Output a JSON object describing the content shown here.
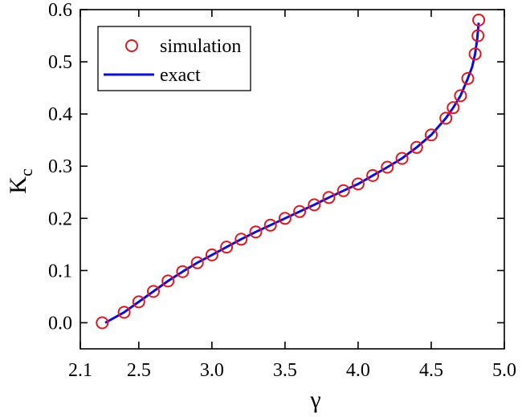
{
  "chart_data": {
    "type": "scatter",
    "title": "",
    "xlabel": "γ",
    "ylabel_main": "K",
    "ylabel_sub": "c",
    "xlim": [
      2.1,
      5.0
    ],
    "ylim": [
      -0.05,
      0.6
    ],
    "xticks": [
      2.1,
      2.5,
      3.0,
      3.5,
      4.0,
      4.5,
      5.0
    ],
    "xtick_labels": [
      "2.1",
      "2.5",
      "3.0",
      "3.5",
      "4.0",
      "4.5",
      "5.0"
    ],
    "yticks": [
      0.0,
      0.1,
      0.2,
      0.3,
      0.4,
      0.5,
      0.6
    ],
    "ytick_labels": [
      "0.0",
      "0.1",
      "0.2",
      "0.3",
      "0.4",
      "0.5",
      "0.6"
    ],
    "grid": false,
    "legend_position": "top-left",
    "series": [
      {
        "name": "simulation",
        "kind": "markers",
        "color": "#e8141c",
        "x": [
          2.25,
          2.4,
          2.5,
          2.6,
          2.7,
          2.8,
          2.9,
          3.0,
          3.1,
          3.2,
          3.3,
          3.4,
          3.5,
          3.6,
          3.7,
          3.8,
          3.9,
          4.0,
          4.1,
          4.2,
          4.3,
          4.4,
          4.5,
          4.6,
          4.65,
          4.7,
          4.75,
          4.8,
          4.82,
          4.825
        ],
        "y": [
          0.0,
          0.02,
          0.04,
          0.06,
          0.08,
          0.098,
          0.115,
          0.13,
          0.145,
          0.16,
          0.174,
          0.187,
          0.2,
          0.213,
          0.226,
          0.24,
          0.253,
          0.266,
          0.282,
          0.298,
          0.315,
          0.336,
          0.36,
          0.392,
          0.412,
          0.435,
          0.468,
          0.515,
          0.55,
          0.58
        ]
      },
      {
        "name": "exact",
        "kind": "line",
        "color": "#0b0be6",
        "x": [
          2.27,
          2.4,
          2.5,
          2.6,
          2.7,
          2.8,
          2.9,
          3.0,
          3.1,
          3.2,
          3.3,
          3.4,
          3.5,
          3.6,
          3.7,
          3.8,
          3.9,
          4.0,
          4.1,
          4.2,
          4.3,
          4.4,
          4.5,
          4.6,
          4.65,
          4.7,
          4.75,
          4.78,
          4.8,
          4.815,
          4.825
        ],
        "y": [
          0.0,
          0.02,
          0.04,
          0.06,
          0.08,
          0.098,
          0.115,
          0.13,
          0.145,
          0.16,
          0.174,
          0.187,
          0.2,
          0.213,
          0.226,
          0.24,
          0.253,
          0.266,
          0.282,
          0.298,
          0.315,
          0.336,
          0.36,
          0.392,
          0.412,
          0.435,
          0.468,
          0.49,
          0.515,
          0.545,
          0.575
        ]
      }
    ]
  }
}
